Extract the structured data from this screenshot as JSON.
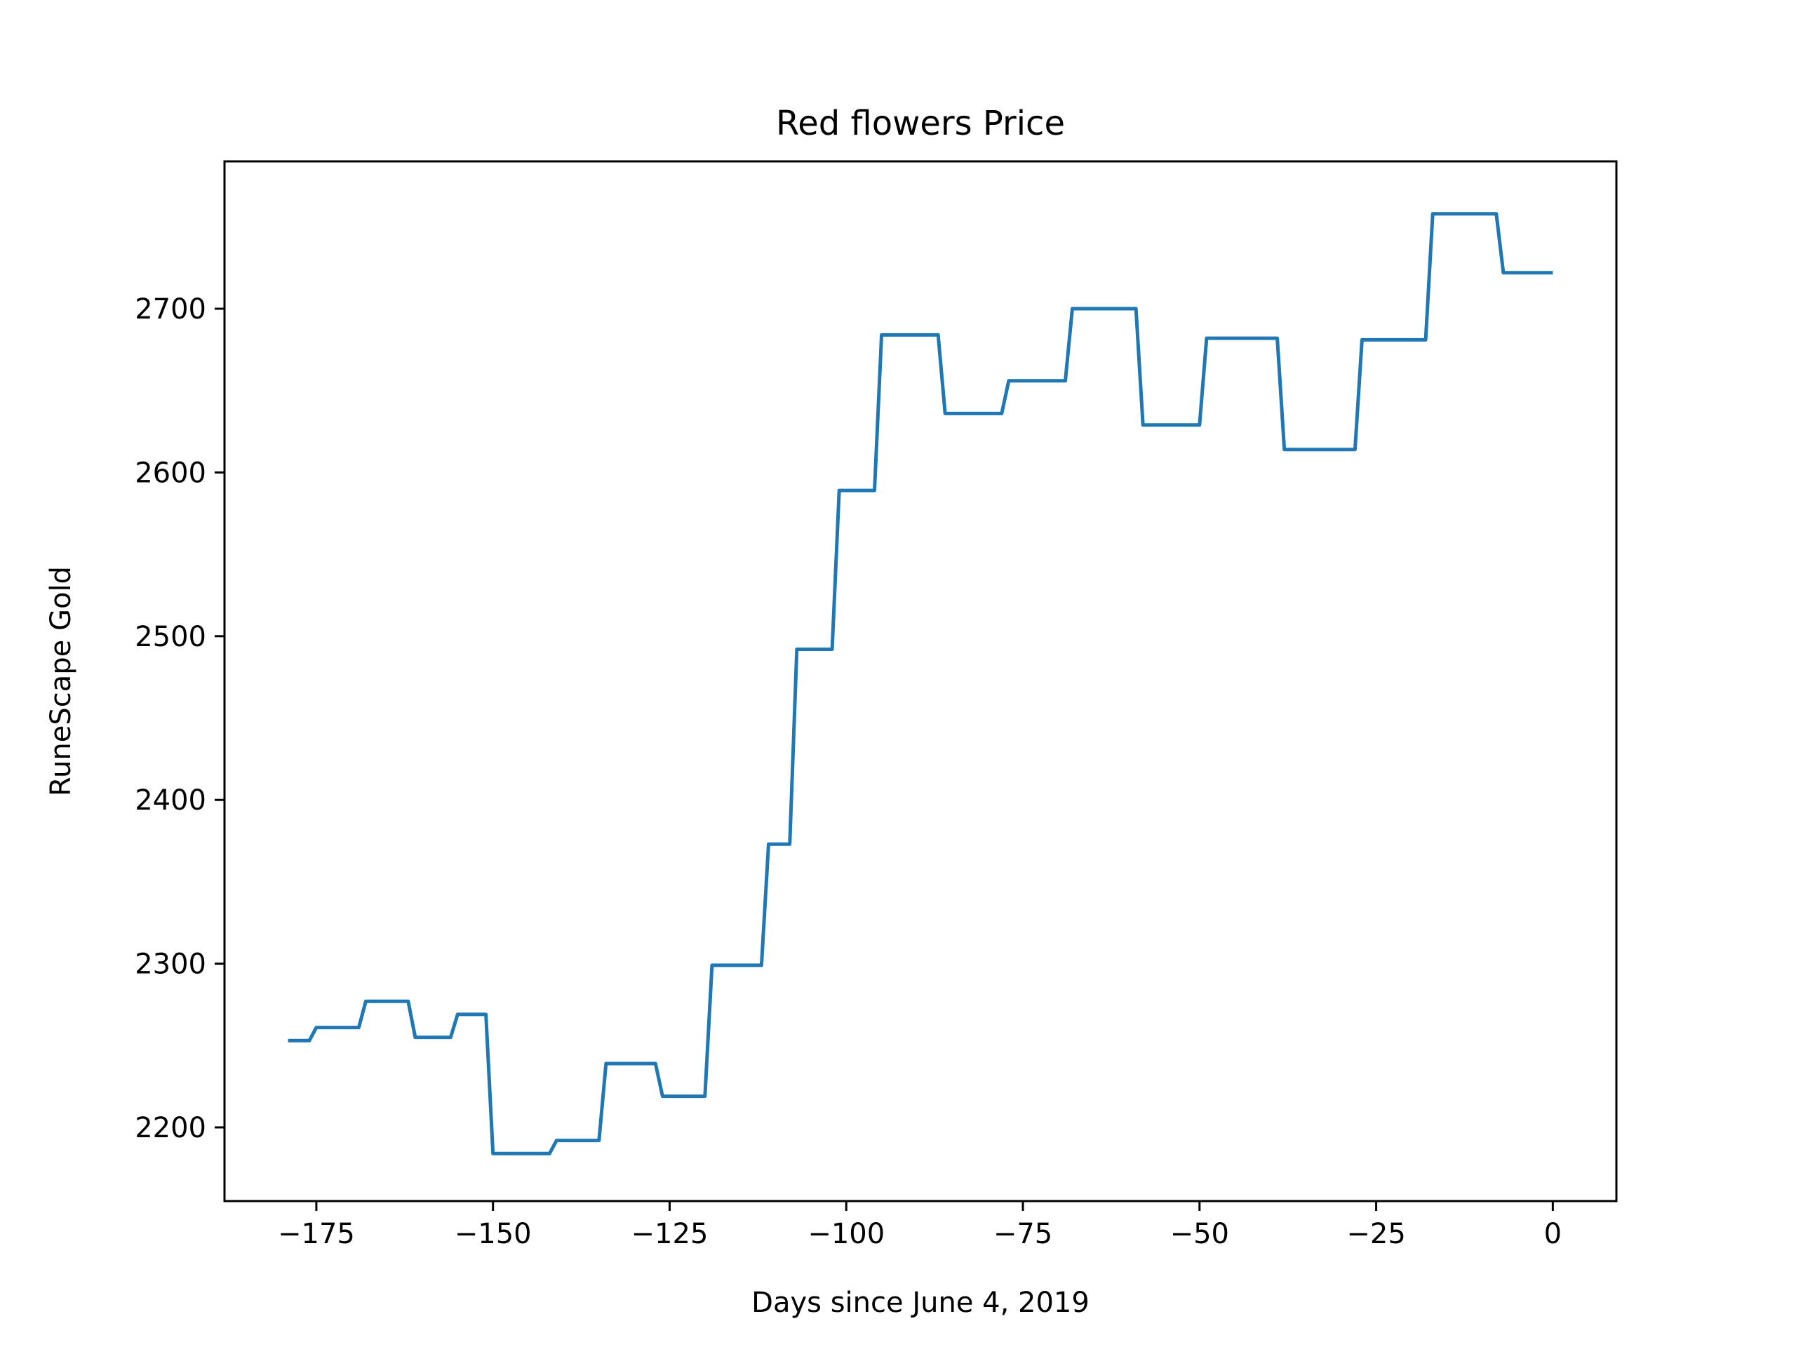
{
  "chart_data": {
    "type": "line",
    "title": "Red flowers Price",
    "xlabel": "Days since June 4, 2019",
    "ylabel": "RuneScape Gold",
    "xlim": [
      -188,
      9
    ],
    "ylim": [
      2155,
      2790
    ],
    "x_ticks": [
      -175,
      -150,
      -125,
      -100,
      -75,
      -50,
      -25,
      0
    ],
    "x_tick_labels": [
      "−175",
      "−150",
      "−125",
      "−100",
      "−75",
      "−50",
      "−25",
      "0"
    ],
    "y_ticks": [
      2200,
      2300,
      2400,
      2500,
      2600,
      2700
    ],
    "y_tick_labels": [
      "2200",
      "2300",
      "2400",
      "2500",
      "2600",
      "2700"
    ],
    "grid": false,
    "line_color": "#1f77b4",
    "series": [
      {
        "x": [
          -179,
          -176,
          -175,
          -169,
          -168,
          -162,
          -161,
          -156,
          -155,
          -151,
          -150,
          -142,
          -141,
          -135,
          -134,
          -127,
          -126,
          -120,
          -119,
          -112,
          -111,
          -108,
          -107,
          -102,
          -101,
          -96,
          -95,
          -87,
          -86,
          -78,
          -77,
          -69,
          -68,
          -59,
          -58,
          -50,
          -49,
          -39,
          -38,
          -28,
          -27,
          -18,
          -17,
          -8,
          -7,
          0
        ],
        "y": [
          2253,
          2253,
          2261,
          2261,
          2277,
          2277,
          2255,
          2255,
          2269,
          2269,
          2184,
          2184,
          2192,
          2192,
          2239,
          2239,
          2219,
          2219,
          2299,
          2299,
          2373,
          2373,
          2492,
          2492,
          2589,
          2589,
          2684,
          2684,
          2636,
          2636,
          2656,
          2656,
          2700,
          2700,
          2629,
          2629,
          2682,
          2682,
          2614,
          2614,
          2681,
          2681,
          2758,
          2758,
          2722,
          2722
        ]
      }
    ]
  }
}
